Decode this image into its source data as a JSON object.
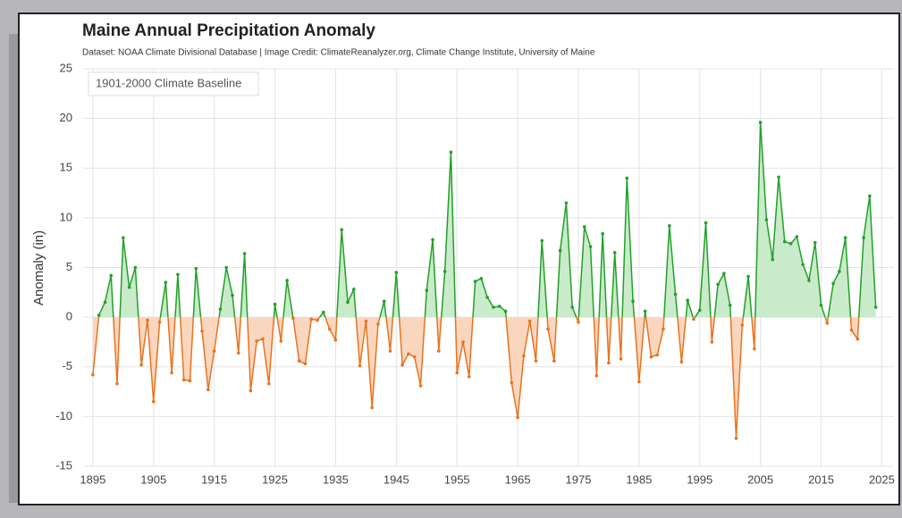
{
  "chart_data": {
    "type": "line",
    "title": "Maine Annual Precipitation Anomaly",
    "subtitle": "Dataset: NOAA Climate Divisional Database | Image Credit: ClimateReanalyzer.org, Climate Change Institute, University of Maine",
    "annotation": "1901-2000 Climate Baseline",
    "ylabel": "Anomaly (in)",
    "x": [
      1895,
      1896,
      1897,
      1898,
      1899,
      1900,
      1901,
      1902,
      1903,
      1904,
      1905,
      1906,
      1907,
      1908,
      1909,
      1910,
      1911,
      1912,
      1913,
      1914,
      1915,
      1916,
      1917,
      1918,
      1919,
      1920,
      1921,
      1922,
      1923,
      1924,
      1925,
      1926,
      1927,
      1928,
      1929,
      1930,
      1931,
      1932,
      1933,
      1934,
      1935,
      1936,
      1937,
      1938,
      1939,
      1940,
      1941,
      1942,
      1943,
      1944,
      1945,
      1946,
      1947,
      1948,
      1949,
      1950,
      1951,
      1952,
      1953,
      1954,
      1955,
      1956,
      1957,
      1958,
      1959,
      1960,
      1961,
      1962,
      1963,
      1964,
      1965,
      1966,
      1967,
      1968,
      1969,
      1970,
      1971,
      1972,
      1973,
      1974,
      1975,
      1976,
      1977,
      1978,
      1979,
      1980,
      1981,
      1982,
      1983,
      1984,
      1985,
      1986,
      1987,
      1988,
      1989,
      1990,
      1991,
      1992,
      1993,
      1994,
      1995,
      1996,
      1997,
      1998,
      1999,
      2000,
      2001,
      2002,
      2003,
      2004,
      2005,
      2006,
      2007,
      2008,
      2009,
      2010,
      2011,
      2012,
      2013,
      2014,
      2015,
      2016,
      2017,
      2018,
      2019,
      2020,
      2021,
      2022,
      2023,
      2024
    ],
    "values": [
      -5.8,
      0.2,
      1.5,
      4.2,
      -6.7,
      8.0,
      3.0,
      5.0,
      -4.8,
      -0.3,
      -8.5,
      -0.5,
      3.5,
      -5.6,
      4.3,
      -6.3,
      -6.4,
      4.9,
      -1.4,
      -7.3,
      -3.4,
      0.8,
      5.0,
      2.2,
      -3.6,
      6.4,
      -7.4,
      -2.4,
      -2.2,
      -6.7,
      1.3,
      -2.4,
      3.7,
      -0.1,
      -4.4,
      -4.7,
      -0.2,
      -0.3,
      0.5,
      -1.2,
      -2.3,
      8.8,
      1.5,
      2.8,
      -4.9,
      -0.4,
      -9.1,
      -0.7,
      1.6,
      -3.4,
      4.5,
      -4.8,
      -3.7,
      -4.0,
      -6.9,
      2.7,
      7.8,
      -3.4,
      4.6,
      16.6,
      -5.6,
      -2.5,
      -6.0,
      3.6,
      3.9,
      2.0,
      1.0,
      1.1,
      0.6,
      -6.6,
      -10.1,
      -3.9,
      -0.4,
      -4.4,
      7.7,
      -1.2,
      -4.4,
      6.7,
      11.5,
      1.0,
      -0.5,
      9.1,
      7.1,
      -5.9,
      8.4,
      -4.6,
      6.5,
      -4.2,
      14.0,
      1.6,
      -6.5,
      0.6,
      -4.0,
      -3.8,
      -1.2,
      9.2,
      2.3,
      -4.5,
      1.7,
      -0.2,
      0.7,
      9.5,
      -2.5,
      3.3,
      4.4,
      1.2,
      -12.2,
      -0.8,
      4.1,
      -3.2,
      19.6,
      9.8,
      5.8,
      14.1,
      7.6,
      7.4,
      8.1,
      5.3,
      3.7,
      7.5,
      1.2,
      -0.6,
      3.4,
      4.6,
      8.0,
      -1.3,
      -2.2,
      8.0,
      12.2,
      1.0
    ],
    "color_positive": "#22a02a",
    "color_negative": "#e8731f",
    "fill_positive": "#c9ebc9",
    "fill_negative": "#fbd6bf",
    "xlim": [
      1893.4,
      2027
    ],
    "xticks": [
      1895,
      1905,
      1915,
      1925,
      1935,
      1945,
      1955,
      1965,
      1975,
      1985,
      1995,
      2005,
      2015,
      2025
    ],
    "ylim": [
      -15,
      25
    ],
    "yticks": [
      -15,
      -10,
      -5,
      0,
      5,
      10,
      15,
      20,
      25
    ],
    "grid": true
  }
}
